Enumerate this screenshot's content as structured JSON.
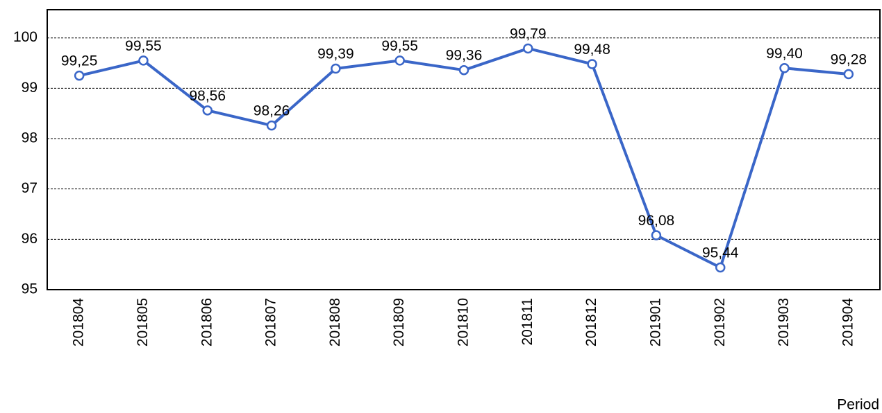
{
  "chart_data": {
    "type": "line",
    "x_label": "Period",
    "categories": [
      "201804",
      "201805",
      "201806",
      "201807",
      "201808",
      "201809",
      "201810",
      "201811",
      "201812",
      "201901",
      "201902",
      "201903",
      "201904"
    ],
    "values": [
      99.25,
      99.55,
      98.56,
      98.26,
      99.39,
      99.55,
      99.36,
      99.79,
      99.48,
      96.08,
      95.44,
      99.4,
      99.28
    ],
    "value_labels": [
      "99,25",
      "99,55",
      "98,56",
      "98,26",
      "99,39",
      "99,55",
      "99,36",
      "99,79",
      "99,48",
      "96,08",
      "95,44",
      "99,40",
      "99,28"
    ],
    "color": "#3a66c8",
    "ylim": [
      95,
      100.56
    ],
    "yticks": [
      95,
      96,
      97,
      98,
      99,
      100
    ],
    "grid": true
  }
}
